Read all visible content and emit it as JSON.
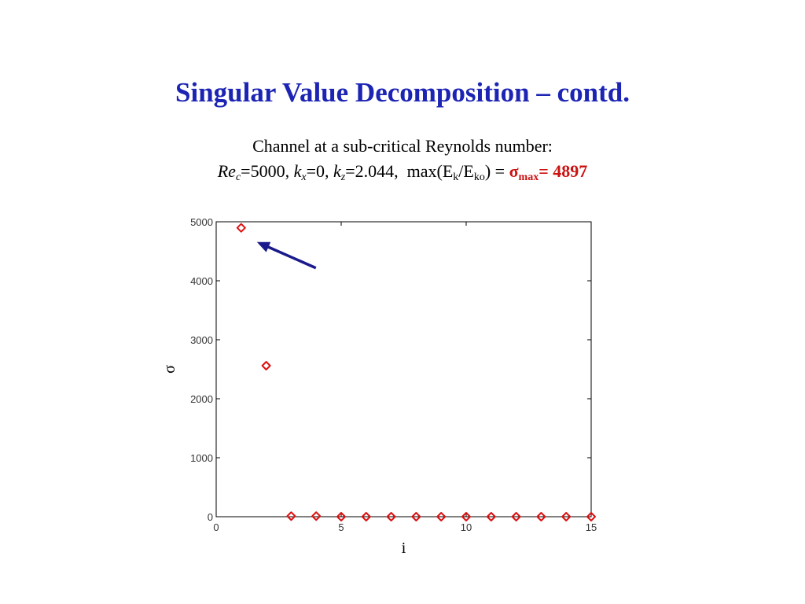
{
  "slide": {
    "title": "Singular Value Decomposition – contd.",
    "subtitle_line1": "Channel at a sub-critical Reynolds number:",
    "params": {
      "re_sym": "Re",
      "re_sub": "c",
      "re_val": "=5000,",
      "kx_sym": "k",
      "kx_sub": "x",
      "kx_val": "=0,",
      "kz_sym": "k",
      "kz_sub": "z",
      "kz_val": "=2.044,",
      "max_open": "max(E",
      "ek_sub": "k",
      "slash": "/E",
      "eko_sub": "ko",
      "max_close": ") =",
      "sigma_sym": "σ",
      "sigma_sub": "max",
      "sigma_val": "= 4897"
    }
  },
  "chart_data": {
    "type": "scatter",
    "xlabel": "i",
    "ylabel": "σ",
    "xlim": [
      0,
      15
    ],
    "ylim": [
      0,
      5000
    ],
    "xticks": [
      0,
      5,
      10,
      15
    ],
    "yticks": [
      0,
      1000,
      2000,
      3000,
      4000,
      5000
    ],
    "grid": false,
    "marker": "diamond",
    "marker_color": "#dd1111",
    "arrow_color": "#1a1a8c",
    "annotation": "arrow pointing at the largest singular value (i = 1)",
    "series": [
      {
        "x": [
          1,
          2,
          3,
          4,
          5,
          6,
          7,
          8,
          9,
          10,
          11,
          12,
          13,
          14,
          15
        ],
        "y": [
          4897,
          2560,
          10,
          10,
          0,
          0,
          0,
          0,
          0,
          0,
          0,
          0,
          0,
          0,
          0
        ]
      }
    ]
  }
}
